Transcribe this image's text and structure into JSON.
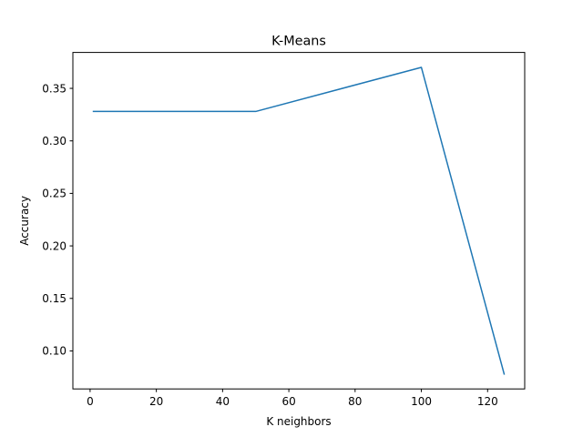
{
  "chart_data": {
    "type": "line",
    "title": "K-Means",
    "xlabel": "K neighbors",
    "ylabel": "Accuracy",
    "xlim": [
      -5.2,
      131.2
    ],
    "ylim": [
      0.0638,
      0.3842
    ],
    "xticks": [
      0,
      20,
      40,
      60,
      80,
      100,
      120
    ],
    "xtick_labels": [
      "0",
      "20",
      "40",
      "60",
      "80",
      "100",
      "120"
    ],
    "yticks": [
      0.1,
      0.15,
      0.2,
      0.25,
      0.3,
      0.35
    ],
    "ytick_labels": [
      "0.10",
      "0.15",
      "0.20",
      "0.25",
      "0.30",
      "0.35"
    ],
    "grid": false,
    "series": [
      {
        "color": "#1f77b4",
        "x": [
          1,
          50,
          100,
          125
        ],
        "y": [
          0.328,
          0.328,
          0.37,
          0.078
        ]
      }
    ]
  }
}
